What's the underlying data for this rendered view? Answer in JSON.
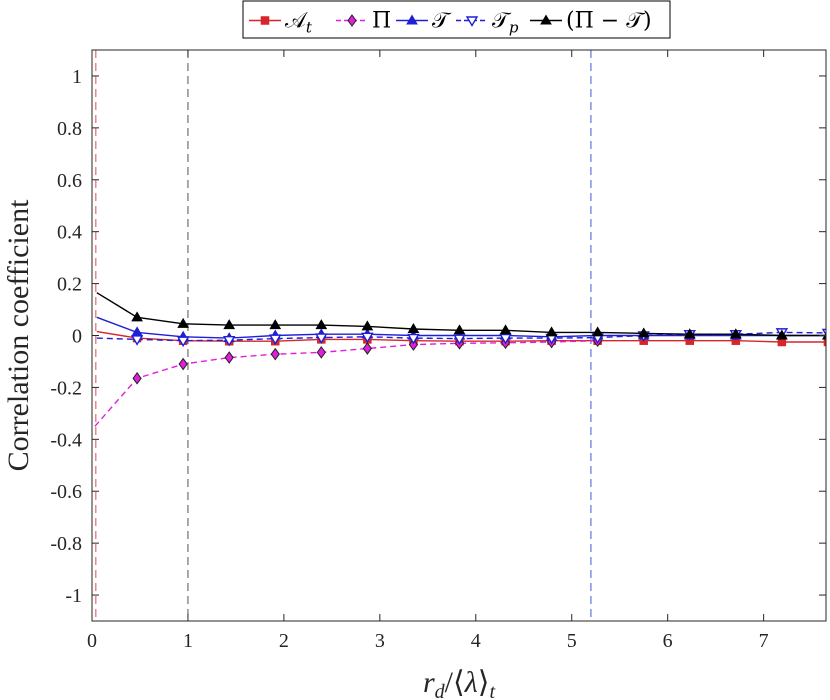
{
  "chart_data": {
    "type": "line",
    "xlabel": "r_d/⟨λ⟩_t",
    "ylabel": "Correlation coefficient",
    "xlim": [
      0,
      7.65
    ],
    "ylim": [
      -1.1,
      1.1
    ],
    "xticks": [
      0,
      1,
      2,
      3,
      4,
      5,
      6,
      7
    ],
    "yticks": [
      1,
      0.8,
      0.6,
      0.4,
      0.2,
      0,
      -0.2,
      -0.4,
      -0.6,
      -0.8,
      -1
    ],
    "ytick_labels": [
      "1",
      "0.8",
      "0.6",
      "0.4",
      "0.2",
      "0",
      "-0.2",
      "-0.4",
      "-0.6",
      "-0.8",
      "-1"
    ],
    "grid": false,
    "legend_position": "top",
    "vertical_lines": [
      {
        "x": 0.04,
        "color": "#e8484a"
      },
      {
        "x": 1.0,
        "color": "#555555"
      },
      {
        "x": 5.2,
        "color": "#3a5bd9"
      }
    ],
    "series": [
      {
        "name": "𝒜t",
        "color": "#d6262b",
        "dash": "",
        "marker": "square",
        "marker_fill": "#d6262b",
        "x": [
          0.05,
          0.47,
          0.95,
          1.43,
          1.91,
          2.39,
          2.87,
          3.35,
          3.83,
          4.31,
          4.79,
          5.27,
          5.75,
          6.23,
          6.71,
          7.19,
          7.67
        ],
        "y": [
          0.015,
          -0.01,
          -0.02,
          -0.022,
          -0.022,
          -0.015,
          -0.015,
          -0.02,
          -0.022,
          -0.022,
          -0.02,
          -0.02,
          -0.02,
          -0.02,
          -0.02,
          -0.025,
          -0.025
        ]
      },
      {
        "name": "Π",
        "color": "#e020d8",
        "dash": "6,4",
        "marker": "diamond",
        "marker_fill": "#e020d8",
        "x": [
          0.03,
          0.47,
          0.95,
          1.43,
          1.91,
          2.39,
          2.87,
          3.35,
          3.83,
          4.31,
          4.79,
          5.27
        ],
        "y": [
          -0.35,
          -0.165,
          -0.11,
          -0.085,
          -0.072,
          -0.065,
          -0.05,
          -0.035,
          -0.03,
          -0.028,
          -0.025,
          -0.02
        ]
      },
      {
        "name": "𝒯",
        "color": "#1f1fd6",
        "dash": "",
        "marker": "triangle-up",
        "marker_fill": "#1f1fd6",
        "x": [
          0.05,
          0.47,
          0.95,
          1.43,
          1.91,
          2.39,
          2.87,
          3.35,
          3.83,
          4.31,
          4.79,
          5.27,
          5.75,
          6.23,
          6.71,
          7.19,
          7.67
        ],
        "y": [
          0.07,
          0.012,
          -0.005,
          -0.01,
          0.0,
          0.005,
          0.005,
          0.0,
          0.0,
          0.0,
          -0.005,
          0.0,
          0.0,
          0.0,
          0.0,
          0.0,
          0.0
        ]
      },
      {
        "name": "𝒯p",
        "color": "#1f1fd6",
        "dash": "6,4",
        "marker": "triangle-down",
        "marker_fill": "#ffffff",
        "x": [
          0.05,
          0.47,
          0.95,
          1.43,
          1.91,
          2.39,
          2.87,
          3.35,
          3.83,
          4.31,
          4.79,
          5.27,
          5.75,
          6.23,
          6.71,
          7.19,
          7.67
        ],
        "y": [
          -0.01,
          -0.015,
          -0.02,
          -0.018,
          -0.012,
          -0.008,
          -0.005,
          -0.01,
          -0.012,
          -0.01,
          -0.01,
          -0.008,
          0.0,
          0.005,
          0.005,
          0.012,
          0.01
        ]
      },
      {
        "name": "(Π − 𝒯)",
        "color": "#000000",
        "dash": "",
        "marker": "triangle-up",
        "marker_fill": "#000000",
        "x": [
          0.05,
          0.47,
          0.95,
          1.43,
          1.91,
          2.39,
          2.87,
          3.35,
          3.83,
          4.31,
          4.79,
          5.27,
          5.75,
          6.23,
          6.71,
          7.19,
          7.67
        ],
        "y": [
          0.165,
          0.07,
          0.045,
          0.04,
          0.04,
          0.04,
          0.035,
          0.025,
          0.02,
          0.02,
          0.012,
          0.012,
          0.008,
          0.005,
          0.005,
          0.0,
          0.0
        ]
      }
    ]
  }
}
